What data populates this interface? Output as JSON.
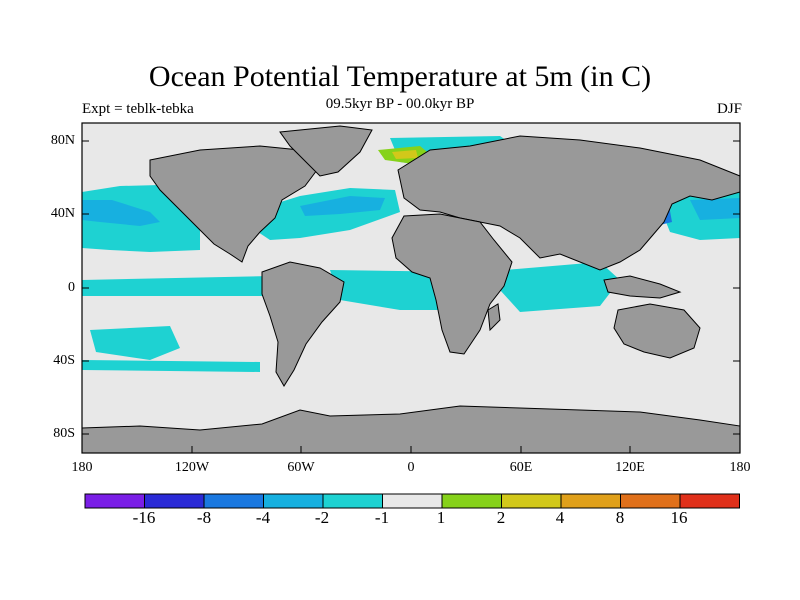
{
  "title": "Ocean Potential Temperature at 5m (in C)",
  "subtitle": "09.5kyr BP - 00.0kyr BP",
  "expt_label": "Expt = teblk-tebka",
  "season_label": "DJF",
  "axes": {
    "x_ticks": [
      "180",
      "120W",
      "60W",
      "0",
      "60E",
      "120E",
      "180"
    ],
    "y_ticks": [
      "80N",
      "40N",
      "0",
      "40S",
      "80S"
    ]
  },
  "colorbar": {
    "labels": [
      "-16",
      "-8",
      "-4",
      "-2",
      "-1",
      "1",
      "2",
      "4",
      "8",
      "16"
    ],
    "colors": [
      "#7a1ee6",
      "#2a2ad6",
      "#1a78e0",
      "#17b0e0",
      "#1ed2d2",
      "#e8e8e8",
      "#86d21a",
      "#d2c81a",
      "#e0a01a",
      "#e0701a",
      "#e0301a"
    ]
  },
  "map_colors": {
    "ocean_neutral": "#e8e8e8",
    "land": "#999999",
    "cool_light": "#1ed2d2",
    "cool_medium": "#17b0e0",
    "cool_strong": "#1a78e0",
    "cool_deep": "#2a2ad6",
    "warm_light": "#86d21a",
    "warm_medium": "#d2c81a"
  }
}
